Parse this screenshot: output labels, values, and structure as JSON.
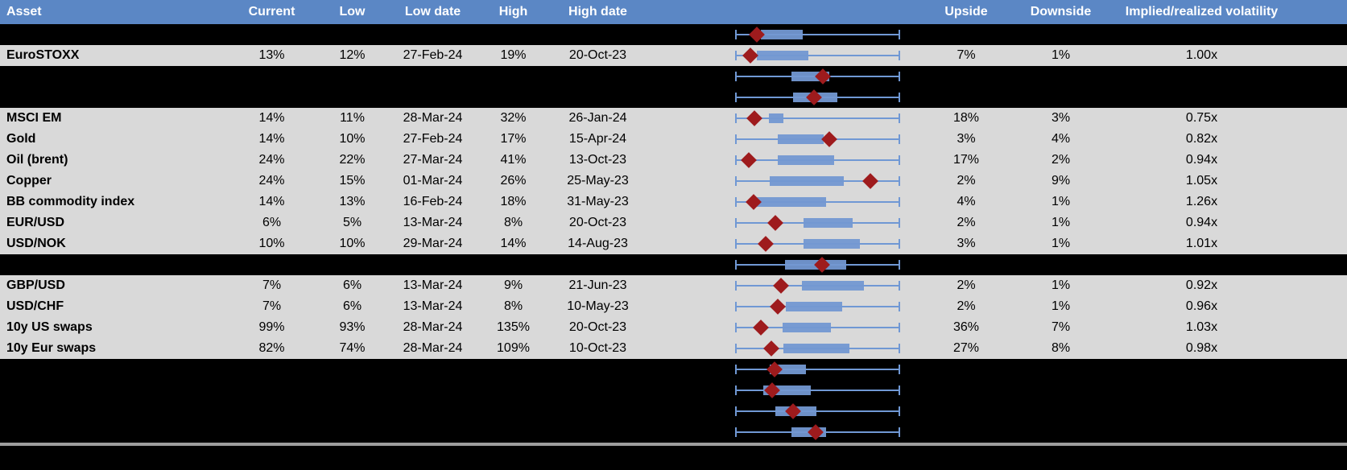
{
  "header": {
    "columns": [
      "Asset",
      "Current",
      "Low",
      "Low date",
      "High",
      "High date",
      "",
      "Upside",
      "Downside",
      "Implied/realized volatility"
    ]
  },
  "colors": {
    "header_bg": "#5b87c5",
    "header_text": "#ffffff",
    "row_bg": "#d9d9d9",
    "hidden_row_bg": "#000000",
    "box_fill": "#7398d2",
    "whisker_line": "#7098d4",
    "diamond": "#9e1b1d",
    "divider": "#9d9d9d"
  },
  "rows": [
    {
      "type": "hidden",
      "label": "",
      "current": "",
      "low": "",
      "low_date": "",
      "high": "",
      "high_date": "",
      "upside": "",
      "downside": "",
      "iv_ratio": "",
      "box": {
        "start": 15.6,
        "end": 41.1,
        "diamond": 13.0
      }
    },
    {
      "type": "data",
      "label": "EuroSTOXX",
      "current": "13%",
      "low": "12%",
      "low_date": "27-Feb-24",
      "high": "19%",
      "high_date": "20-Oct-23",
      "upside": "7%",
      "downside": "1%",
      "iv_ratio": "1.00x",
      "box": {
        "start": 13.0,
        "end": 44.6,
        "diamond": 9.5
      }
    },
    {
      "type": "hidden",
      "label": "",
      "current": "",
      "low": "",
      "low_date": "",
      "high": "",
      "high_date": "",
      "upside": "",
      "downside": "",
      "iv_ratio": "",
      "box": {
        "start": 34.0,
        "end": 57.0,
        "diamond": 53.0
      }
    },
    {
      "type": "hidden",
      "label": "",
      "current": "",
      "low": "",
      "low_date": "",
      "high": "",
      "high_date": "",
      "upside": "",
      "downside": "",
      "iv_ratio": "",
      "box": {
        "start": 35.0,
        "end": 62.0,
        "diamond": 48.0
      }
    },
    {
      "type": "data",
      "label": "MSCI EM",
      "current": "14%",
      "low": "11%",
      "low_date": "28-Mar-24",
      "high": "32%",
      "high_date": "26-Jan-24",
      "upside": "18%",
      "downside": "3%",
      "iv_ratio": "0.75x",
      "box": {
        "start": 20.3,
        "end": 29.3,
        "diamond": 11.7
      }
    },
    {
      "type": "data",
      "label": "Gold",
      "current": "14%",
      "low": "10%",
      "low_date": "27-Feb-24",
      "high": "17%",
      "high_date": "15-Apr-24",
      "upside": "3%",
      "downside": "4%",
      "iv_ratio": "0.82x",
      "box": {
        "start": 25.7,
        "end": 53.7,
        "diamond": 56.9
      }
    },
    {
      "type": "data",
      "label": "Oil (brent)",
      "current": "24%",
      "low": "22%",
      "low_date": "27-Mar-24",
      "high": "41%",
      "high_date": "13-Oct-23",
      "upside": "17%",
      "downside": "2%",
      "iv_ratio": "0.94x",
      "box": {
        "start": 26.0,
        "end": 60.0,
        "diamond": 8.5
      }
    },
    {
      "type": "data",
      "label": "Copper",
      "current": "24%",
      "low": "15%",
      "low_date": "01-Mar-24",
      "high": "26%",
      "high_date": "25-May-23",
      "upside": "2%",
      "downside": "9%",
      "iv_ratio": "1.05x",
      "box": {
        "start": 21.1,
        "end": 65.9,
        "diamond": 82.1
      }
    },
    {
      "type": "data",
      "label": "BB commodity index",
      "current": "14%",
      "low": "13%",
      "low_date": "16-Feb-24",
      "high": "18%",
      "high_date": "31-May-23",
      "upside": "4%",
      "downside": "1%",
      "iv_ratio": "1.26x",
      "box": {
        "start": 12.2,
        "end": 55.3,
        "diamond": 11.4
      }
    },
    {
      "type": "data",
      "label": "EUR/USD",
      "current": "6%",
      "low": "5%",
      "low_date": "13-Mar-24",
      "high": "8%",
      "high_date": "20-Oct-23",
      "upside": "2%",
      "downside": "1%",
      "iv_ratio": "0.94x",
      "box": {
        "start": 41.5,
        "end": 71.2,
        "diamond": 24.4
      }
    },
    {
      "type": "data",
      "label": "USD/NOK",
      "current": "10%",
      "low": "10%",
      "low_date": "29-Mar-24",
      "high": "14%",
      "high_date": "14-Aug-23",
      "upside": "3%",
      "downside": "1%",
      "iv_ratio": "1.01x",
      "box": {
        "start": 41.5,
        "end": 75.6,
        "diamond": 18.7
      }
    },
    {
      "type": "hidden",
      "label": "",
      "current": "",
      "low": "",
      "low_date": "",
      "high": "",
      "high_date": "",
      "upside": "",
      "downside": "",
      "iv_ratio": "",
      "box": {
        "start": 30.1,
        "end": 67.5,
        "diamond": 52.8
      }
    },
    {
      "type": "data",
      "label": "GBP/USD",
      "current": "7%",
      "low": "6%",
      "low_date": "13-Mar-24",
      "high": "9%",
      "high_date": "21-Jun-23",
      "upside": "2%",
      "downside": "1%",
      "iv_ratio": "0.92x",
      "box": {
        "start": 40.7,
        "end": 78.0,
        "diamond": 28.0
      }
    },
    {
      "type": "data",
      "label": "USD/CHF",
      "current": "7%",
      "low": "6%",
      "low_date": "13-Mar-24",
      "high": "8%",
      "high_date": "10-May-23",
      "upside": "2%",
      "downside": "1%",
      "iv_ratio": "0.96x",
      "box": {
        "start": 30.6,
        "end": 65.0,
        "diamond": 26.0
      }
    },
    {
      "type": "data",
      "label": "10y US swaps",
      "current": "99%",
      "low": "93%",
      "low_date": "28-Mar-24",
      "high": "135%",
      "high_date": "20-Oct-23",
      "upside": "36%",
      "downside": "7%",
      "iv_ratio": "1.03x",
      "box": {
        "start": 28.8,
        "end": 58.2,
        "diamond": 15.8
      }
    },
    {
      "type": "data",
      "label": "10y Eur swaps",
      "current": "82%",
      "low": "74%",
      "low_date": "28-Mar-24",
      "high": "109%",
      "high_date": "10-Oct-23",
      "upside": "27%",
      "downside": "8%",
      "iv_ratio": "0.98x",
      "box": {
        "start": 29.3,
        "end": 69.4,
        "diamond": 22.0
      }
    },
    {
      "type": "hidden",
      "label": "",
      "current": "",
      "low": "",
      "low_date": "",
      "high": "",
      "high_date": "",
      "upside": "",
      "downside": "",
      "iv_ratio": "",
      "box": {
        "start": 21.1,
        "end": 43.1,
        "diamond": 23.9
      }
    },
    {
      "type": "hidden",
      "label": "",
      "current": "",
      "low": "",
      "low_date": "",
      "high": "",
      "high_date": "",
      "upside": "",
      "downside": "",
      "iv_ratio": "",
      "box": {
        "start": 17.1,
        "end": 45.9,
        "diamond": 22.3
      }
    },
    {
      "type": "hidden",
      "label": "",
      "current": "",
      "low": "",
      "low_date": "",
      "high": "",
      "high_date": "",
      "upside": "",
      "downside": "",
      "iv_ratio": "",
      "box": {
        "start": 24.4,
        "end": 49.1,
        "diamond": 35.0
      }
    },
    {
      "type": "hidden",
      "label": "",
      "current": "",
      "low": "",
      "low_date": "",
      "high": "",
      "high_date": "",
      "upside": "",
      "downside": "",
      "iv_ratio": "",
      "box": {
        "start": 34.1,
        "end": 55.3,
        "diamond": 48.8
      }
    }
  ],
  "chart_data": {
    "type": "boxplot-row-charts",
    "note": "Each table row contains a horizontal box-whisker chart; whiskers span the full track, box = interquartile band, red diamond = current level. Positions are percent of track.",
    "track_percent_span": [
      0,
      100
    ]
  }
}
